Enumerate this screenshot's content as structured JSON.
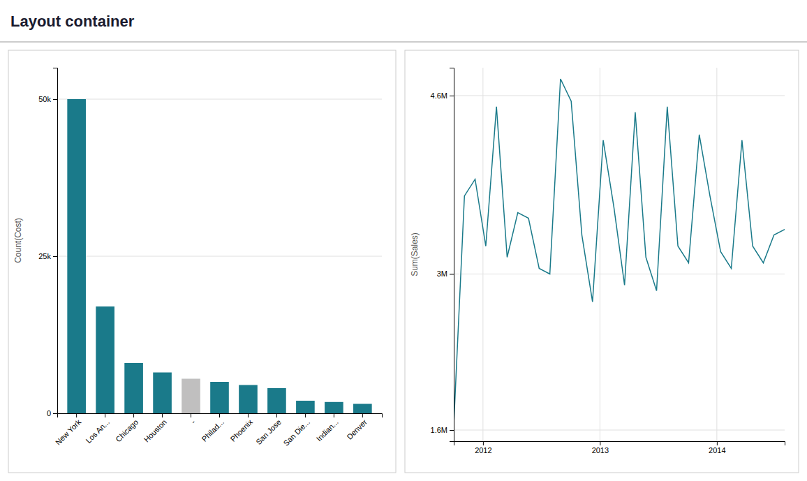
{
  "title": "Layout container",
  "chart_data": [
    {
      "type": "bar",
      "categories": [
        "New York",
        "Los An...",
        "Chicago",
        "Houston",
        "-",
        "Philad...",
        "Phoenix",
        "San Jose",
        "San Die...",
        "Indian...",
        "Denver"
      ],
      "values": [
        50000,
        17000,
        8000,
        6500,
        5500,
        5000,
        4500,
        4000,
        2000,
        1800,
        1500
      ],
      "colors": [
        "#1a7a8a",
        "#1a7a8a",
        "#1a7a8a",
        "#1a7a8a",
        "#c0bfbf",
        "#1a7a8a",
        "#1a7a8a",
        "#1a7a8a",
        "#1a7a8a",
        "#1a7a8a",
        "#1a7a8a"
      ],
      "y_label": "Count(Cost)",
      "ylim": [
        0,
        55000
      ],
      "yticks": [
        0,
        {
          "value": 25000,
          "label": "25k"
        },
        {
          "value": 50000,
          "label": "50k"
        }
      ],
      "grid": true
    },
    {
      "type": "line",
      "x": [
        2011.75,
        2011.8412903225806,
        2011.9325806451614,
        2012.023870967742,
        2012.1151612903227,
        2012.2064516129033,
        2012.2977419354838,
        2012.3890322580644,
        2012.4803225806452,
        2012.5716129032257,
        2012.6629032258065,
        2012.754193548387,
        2012.8454838709677,
        2012.9367741935484,
        2013.028064516129,
        2013.1193548387098,
        2013.2106451612904,
        2013.301935483871,
        2013.3932258064517,
        2013.4845161290323,
        2013.5758064516128,
        2013.6670967741934,
        2013.7583870967742,
        2013.8496774193547,
        2013.9409677419355,
        2014.032258064516,
        2014.123548387097,
        2014.2148387096775,
        2014.306129032258,
        2014.3974193548388,
        2014.4887096774194,
        2014.58
      ],
      "values": [
        1650000,
        3700000,
        3850000,
        3250000,
        4500000,
        3150000,
        3550000,
        3500000,
        3050000,
        3000000,
        4750000,
        4550000,
        3350000,
        2750000,
        4200000,
        3600000,
        2900000,
        4450000,
        3150000,
        2850000,
        4500000,
        3250000,
        3100000,
        4250000,
        3700000,
        3200000,
        3050000,
        4200000,
        3250000,
        3100000,
        3350000,
        3400000
      ],
      "color": "#1a7a8a",
      "y_label": "Sum(Sales)",
      "xlim": [
        2011.75,
        2014.58
      ],
      "xticks": [
        2012,
        2013,
        2014
      ],
      "ylim": [
        1500000,
        4850000
      ],
      "yticks": [
        {
          "value": 1600000,
          "label": "1.6M"
        },
        {
          "value": 3000000,
          "label": "3M"
        },
        {
          "value": 4600000,
          "label": "4.6M"
        }
      ],
      "grid": true
    }
  ]
}
